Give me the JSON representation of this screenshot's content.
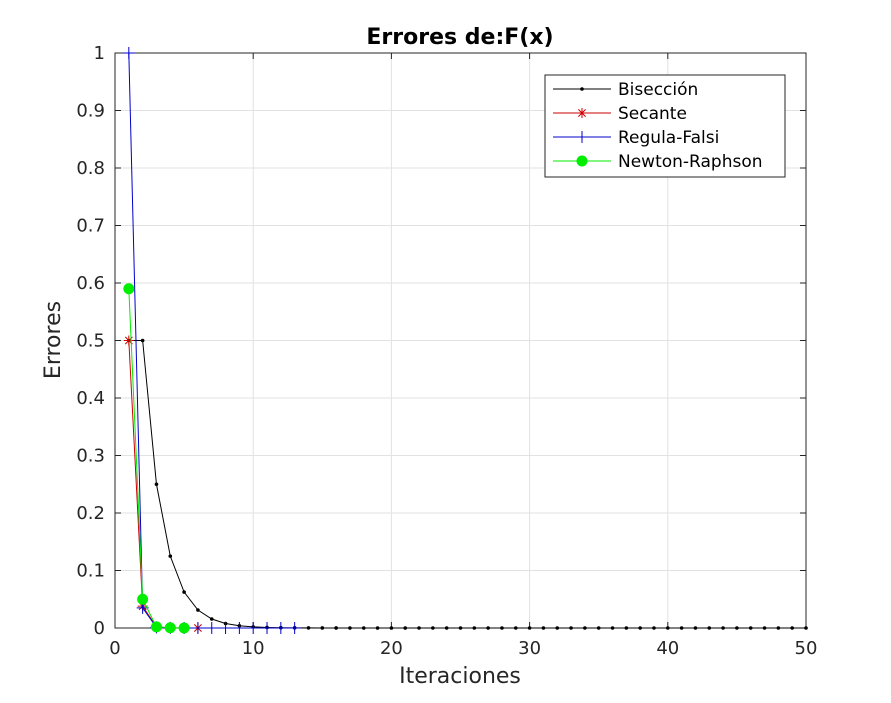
{
  "chart_data": {
    "type": "line",
    "title": "Errores de:F(x)",
    "xlabel": "Iteraciones",
    "ylabel": "Errores",
    "xlim": [
      0,
      50
    ],
    "ylim": [
      0,
      1
    ],
    "xticks": [
      "0",
      "10",
      "20",
      "30",
      "40",
      "50"
    ],
    "yticks": [
      "0",
      "0.1",
      "0.2",
      "0.3",
      "0.4",
      "0.5",
      "0.6",
      "0.7",
      "0.8",
      "0.9",
      "1"
    ],
    "grid": true,
    "legend_position": "top-right",
    "series": [
      {
        "name": "Bisección",
        "color": "#000000",
        "marker": "dot",
        "x": [
          1,
          2,
          3,
          4,
          5,
          6,
          7,
          8,
          9,
          10,
          11,
          12,
          13,
          14,
          15,
          16,
          17,
          18,
          19,
          20,
          21,
          22,
          23,
          24,
          25,
          26,
          27,
          28,
          29,
          30,
          31,
          32,
          33,
          34,
          35,
          36,
          37,
          38,
          39,
          40,
          41,
          42,
          43,
          44,
          45,
          46,
          47,
          48,
          49,
          50
        ],
        "y": [
          0.5,
          0.5,
          0.25,
          0.125,
          0.0625,
          0.03125,
          0.015625,
          0.0078125,
          0.00390625,
          0.001953,
          0.000977,
          0.000488,
          0.000244,
          0.000122,
          6.1e-05,
          3.1e-05,
          1.5e-05,
          8e-06,
          4e-06,
          2e-06,
          1e-06,
          0,
          0,
          0,
          0,
          0,
          0,
          0,
          0,
          0,
          0,
          0,
          0,
          0,
          0,
          0,
          0,
          0,
          0,
          0,
          0,
          0,
          0,
          0,
          0,
          0,
          0,
          0,
          0,
          0
        ]
      },
      {
        "name": "Secante",
        "color": "#cc0000",
        "marker": "asterisk",
        "x": [
          1,
          2,
          3,
          4,
          5,
          6
        ],
        "y": [
          0.5,
          0.038,
          0.002,
          0.0004,
          1e-05,
          0
        ]
      },
      {
        "name": "Regula-Falsi",
        "color": "#0000cc",
        "marker": "plus",
        "x": [
          1,
          2,
          3,
          4,
          5,
          6,
          7,
          8,
          9,
          10,
          11,
          12,
          13
        ],
        "y": [
          1.0,
          0.035,
          0.001,
          0.0002,
          5e-05,
          1e-05,
          3e-06,
          1e-06,
          0,
          0,
          0,
          0,
          0
        ]
      },
      {
        "name": "Newton-Raphson",
        "color": "#00ee00",
        "marker": "circle",
        "x": [
          1,
          2,
          3,
          4,
          5
        ],
        "y": [
          0.59,
          0.05,
          0.002,
          0.0005,
          0.0001
        ]
      }
    ]
  }
}
